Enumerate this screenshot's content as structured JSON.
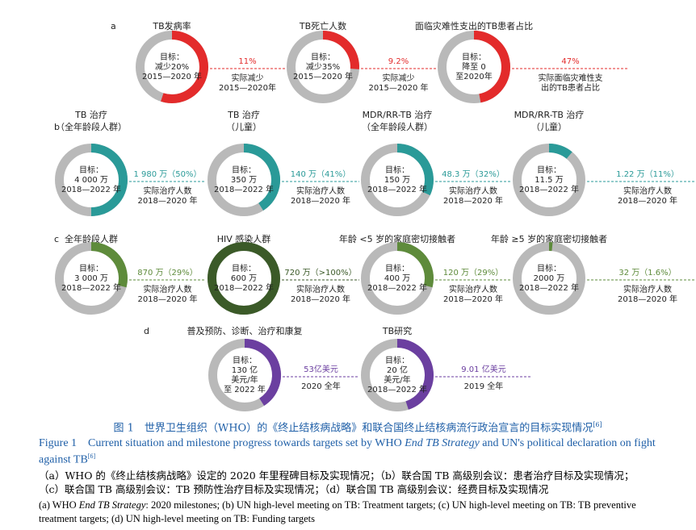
{
  "panels": [
    {
      "label": "a",
      "items": [
        {
          "title": [
            "TB发病率"
          ],
          "center": [
            "目标：",
            "减少20%",
            "2015—2020 年"
          ],
          "actual": "11%",
          "note": [
            "实际减少",
            "2015—2020年"
          ],
          "progress": 55,
          "color": "#e32b2b"
        },
        {
          "title": [
            "TB死亡人数"
          ],
          "center": [
            "目标：",
            "减少35%",
            "2015—2020 年"
          ],
          "actual": "9.2%",
          "note": [
            "实际减少",
            "2015—2020 年"
          ],
          "progress": 26,
          "color": "#e32b2b"
        },
        {
          "title": [
            "面临灾难性支出的TB患者占比"
          ],
          "center": [
            "目标：",
            "降至 0",
            "至2020年"
          ],
          "actual": "47%",
          "note": [
            "实际面临灾难性支",
            "出的TB患者占比"
          ],
          "progress": 47,
          "color": "#e32b2b"
        }
      ]
    },
    {
      "label": "b",
      "items": [
        {
          "title": [
            "TB 治疗",
            "（全年龄段人群）"
          ],
          "center": [
            "目标：",
            "4 000 万",
            "2018—2022 年"
          ],
          "actual": "1 980 万（50%）",
          "note": [
            "实际治疗人数",
            "2018—2020 年"
          ],
          "progress": 50,
          "color": "#2a9a98"
        },
        {
          "title": [
            "TB 治疗",
            "（儿童）"
          ],
          "center": [
            "目标：",
            "350 万",
            "2018—2022 年"
          ],
          "actual": "140 万（41%）",
          "note": [
            "实际治疗人数",
            "2018—2020 年"
          ],
          "progress": 41,
          "color": "#2a9a98"
        },
        {
          "title": [
            "MDR/RR-TB 治疗",
            "（全年龄段人群）"
          ],
          "center": [
            "目标：",
            "150 万",
            "2018—2022 年"
          ],
          "actual": "48.3 万（32%）",
          "note": [
            "实际治疗人数",
            "2018—2020 年"
          ],
          "progress": 32,
          "color": "#2a9a98"
        },
        {
          "title": [
            "MDR/RR-TB 治疗",
            "（儿童）"
          ],
          "center": [
            "目标：",
            "11.5 万",
            "2018—2022 年"
          ],
          "actual": "1.22 万（11%）",
          "note": [
            "实际治疗人数",
            "2018—2020 年"
          ],
          "progress": 11,
          "color": "#2a9a98"
        }
      ]
    },
    {
      "label": "c",
      "items": [
        {
          "title": [
            "全年龄段人群"
          ],
          "center": [
            "目标：",
            "3 000 万",
            "2018—2022 年"
          ],
          "actual": "870 万（29%）",
          "note": [
            "实际治疗人数",
            "2018—2020 年"
          ],
          "progress": 29,
          "color": "#5e8b3b"
        },
        {
          "title": [
            "HIV 感染人群"
          ],
          "center": [
            "目标：",
            "600 万",
            "2018—2022 年"
          ],
          "actual": "720 万（>100%）",
          "note": [
            "实际治疗人数",
            "2018—2020 年"
          ],
          "progress": 100,
          "color": "#3b5a28"
        },
        {
          "title": [
            "年龄 <5 岁的家庭密切接触者"
          ],
          "center": [
            "目标：",
            "400 万",
            "2018—2022 年"
          ],
          "actual": "120 万（29%）",
          "note": [
            "实际治疗人数",
            "2018—2020 年"
          ],
          "progress": 29,
          "color": "#5e8b3b"
        },
        {
          "title": [
            "年龄 ≥5 岁的家庭密切接触者"
          ],
          "center": [
            "目标：",
            "2000 万",
            "2018—2022 年"
          ],
          "actual": "32 万（1.6%）",
          "note": [
            "实际治疗人数",
            "2018—2020 年"
          ],
          "progress": 1.6,
          "color": "#5e8b3b"
        }
      ]
    },
    {
      "label": "d",
      "items": [
        {
          "title": [
            "普及预防、诊断、治疗和康复"
          ],
          "center": [
            "目标：",
            "130 亿",
            "美元/年",
            "至 2022 年"
          ],
          "actual": "53亿美元",
          "note": [
            "2020 全年"
          ],
          "progress": 41,
          "color": "#6b3fa0"
        },
        {
          "title": [
            "TB研究"
          ],
          "center": [
            "目标：",
            "20 亿",
            "美元/年",
            "2018—2022 年"
          ],
          "actual": "9.01 亿美元",
          "note": [
            "2019 全年"
          ],
          "progress": 45,
          "color": "#6b3fa0"
        }
      ]
    }
  ],
  "caption": {
    "zh": [
      "图 1　世界卫生组织（WHO）的《终止结核病战略》和联合国终止结核病流行政治宣言的目标实现情况",
      "[6]"
    ],
    "en": [
      "Figure 1　Current situation and milestone progress towards targets set by WHO ",
      "End TB Strategy",
      " and UN's political declaration on fight against TB",
      "[6]"
    ],
    "legend_zh": [
      "（a）WHO 的《终止结核病战略》设定的 2020 年里程碑目标及实现情况；（b）联合国 TB 高级别会议：患者治疗目标及实现情况；",
      "（c）联合国 TB 高级别会议：TB 预防性治疗目标及实现情况；（d）联合国 TB 高级别会议：经费目标及实现情况"
    ],
    "legend_en": [
      "(a) WHO ",
      "End TB Strategy",
      ": 2020 milestones; (b) UN high-level meeting on TB: Treatment targets; (c) UN high-level meeting on TB: TB preventive treatment targets; (d) UN high-level meeting on TB: Funding targets"
    ]
  }
}
